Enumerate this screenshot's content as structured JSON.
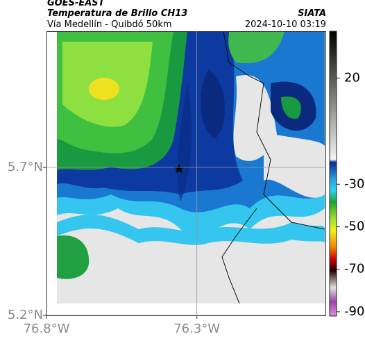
{
  "header": {
    "title": "GOES-EAST",
    "subtitle": "Temperatura de Brillo CH13",
    "region": "Vía Medellín - Quibdó 50km",
    "source": "SIATA",
    "timestamp": "2024-10-10 03:19"
  },
  "map": {
    "xlim": [
      -76.8,
      -75.87
    ],
    "ylim": [
      5.2,
      6.16
    ],
    "xticks": [
      {
        "value": -76.8,
        "label": "76.8°W"
      },
      {
        "value": -76.3,
        "label": "76.3°W"
      }
    ],
    "yticks": [
      {
        "value": 5.7,
        "label": "5.7°N"
      },
      {
        "value": 5.2,
        "label": "5.2°N"
      }
    ],
    "grid": true
  },
  "colorbar": {
    "lim": [
      -92,
      42
    ],
    "ticks": [
      20,
      -30,
      -50,
      -70,
      -90
    ]
  }
}
